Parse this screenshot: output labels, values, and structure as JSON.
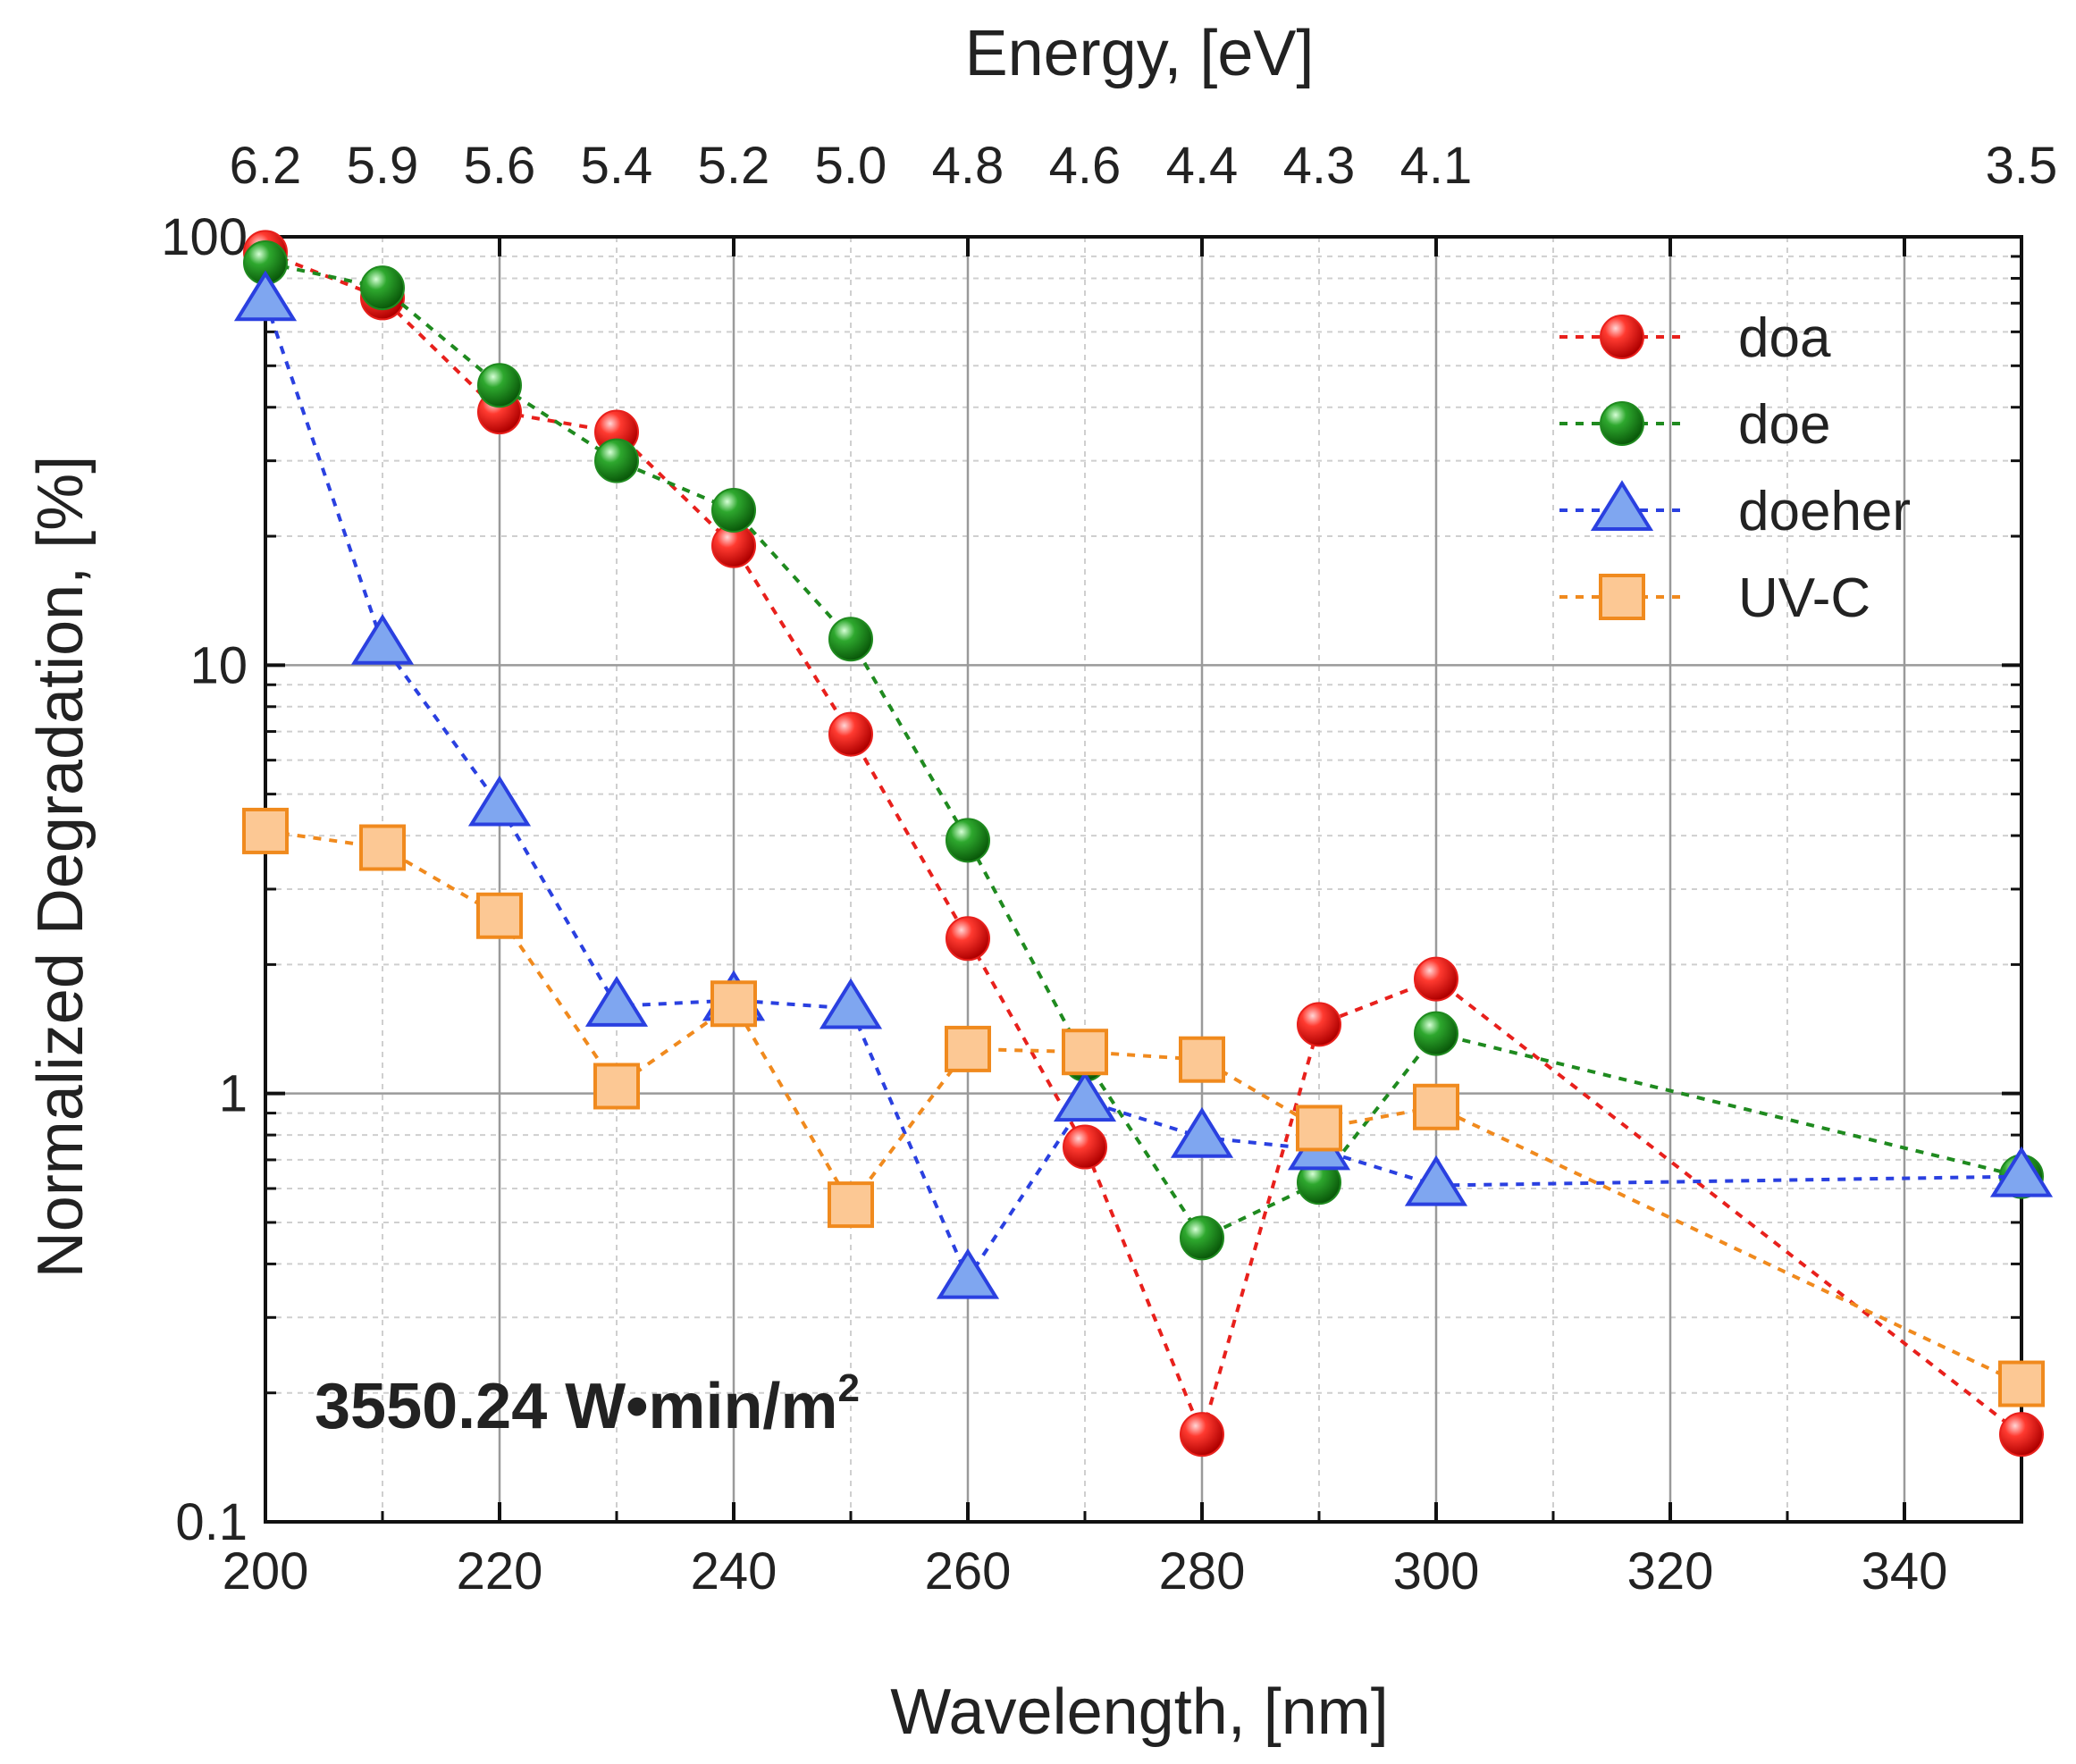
{
  "chart_data": {
    "type": "line",
    "title": "",
    "xlabel": "Wavelength, [nm]",
    "ylabel": "Normalized Degradation, [%]",
    "top_xlabel": "Energy, [eV]",
    "xlim": [
      200,
      350
    ],
    "ylim": [
      0.1,
      100
    ],
    "yscale": "log",
    "grid": true,
    "legend_position": "top-right",
    "x_ticks": [
      200,
      220,
      240,
      260,
      280,
      300,
      320,
      340
    ],
    "x_tick_labels": [
      "200",
      "220",
      "240",
      "260",
      "280",
      "300",
      "320",
      "340"
    ],
    "y_ticks": [
      0.1,
      1,
      10,
      100
    ],
    "y_tick_labels": [
      "0.1",
      "1",
      "10",
      "100"
    ],
    "top_ticks": [
      {
        "wavelength": 200,
        "label": "6.2"
      },
      {
        "wavelength": 210,
        "label": "5.9"
      },
      {
        "wavelength": 220,
        "label": "5.6"
      },
      {
        "wavelength": 230,
        "label": "5.4"
      },
      {
        "wavelength": 240,
        "label": "5.2"
      },
      {
        "wavelength": 250,
        "label": "5.0"
      },
      {
        "wavelength": 260,
        "label": "4.8"
      },
      {
        "wavelength": 270,
        "label": "4.6"
      },
      {
        "wavelength": 280,
        "label": "4.4"
      },
      {
        "wavelength": 290,
        "label": "4.3"
      },
      {
        "wavelength": 300,
        "label": "4.1"
      },
      {
        "wavelength": 350,
        "label": "3.5"
      }
    ],
    "annotation": {
      "text": "3550.24 W•min/m",
      "superscript": "2"
    },
    "x": [
      200,
      210,
      220,
      230,
      240,
      250,
      260,
      270,
      280,
      290,
      300,
      350
    ],
    "series": [
      {
        "name": "doa",
        "marker": "circle",
        "color": "#e8201c",
        "values": [
          92,
          72,
          39,
          35,
          19,
          6.9,
          2.3,
          0.75,
          0.16,
          1.45,
          1.85,
          0.16
        ]
      },
      {
        "name": "doe",
        "marker": "circle",
        "color": "#1f8a1f",
        "values": [
          87,
          76,
          45,
          30,
          23,
          11.5,
          3.9,
          1.2,
          0.46,
          0.62,
          1.38,
          0.64
        ]
      },
      {
        "name": "doeher",
        "marker": "triangle",
        "color": "#2a40e0",
        "values": [
          71,
          11.2,
          4.7,
          1.6,
          1.65,
          1.58,
          0.37,
          0.96,
          0.79,
          0.74,
          0.61,
          0.64
        ]
      },
      {
        "name": "UV-C",
        "marker": "square",
        "color": "#f08a1e",
        "values": [
          4.1,
          3.75,
          2.6,
          1.04,
          1.62,
          0.55,
          1.27,
          1.25,
          1.2,
          0.83,
          0.93,
          0.21
        ]
      }
    ]
  }
}
